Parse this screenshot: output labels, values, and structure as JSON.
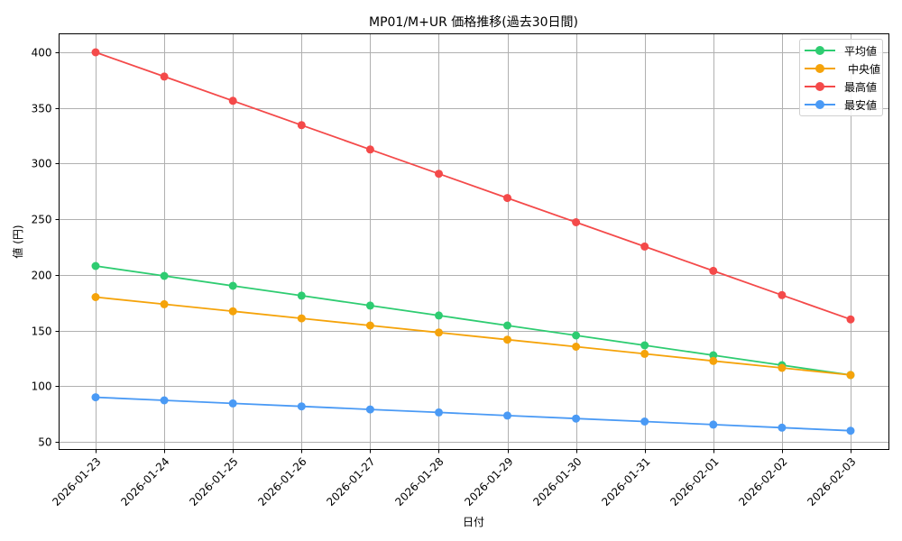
{
  "chart_data": {
    "type": "line",
    "title": "MP01/M+UR 価格推移(過去30日間)",
    "xlabel": "日付",
    "ylabel": "値 (円)",
    "categories": [
      "2026-01-23",
      "2026-01-24",
      "2026-01-25",
      "2026-01-26",
      "2026-01-27",
      "2026-01-28",
      "2026-01-29",
      "2026-01-30",
      "2026-01-31",
      "2026-02-01",
      "2026-02-02",
      "2026-02-03"
    ],
    "series": [
      {
        "name": "平均値",
        "color": "#2ecc71",
        "values": [
          208,
          199.1,
          190.2,
          181.3,
          172.4,
          163.5,
          154.5,
          145.6,
          136.7,
          127.8,
          118.9,
          110
        ]
      },
      {
        "name": "中央値",
        "color": "#f5a30a",
        "values": [
          180,
          173.6,
          167.3,
          160.9,
          154.5,
          148.2,
          141.8,
          135.5,
          129.1,
          122.7,
          116.4,
          110
        ]
      },
      {
        "name": "最高値",
        "color": "#f44a4a",
        "values": [
          400,
          378.2,
          356.4,
          334.5,
          312.7,
          290.9,
          269.1,
          247.3,
          225.5,
          203.6,
          181.8,
          160
        ]
      },
      {
        "name": "最安値",
        "color": "#4a9af5",
        "values": [
          90,
          87.3,
          84.5,
          81.8,
          79.1,
          76.4,
          73.6,
          70.9,
          68.2,
          65.5,
          62.7,
          60
        ]
      }
    ],
    "yticks": [
      50,
      100,
      150,
      200,
      250,
      300,
      350,
      400
    ],
    "ylim": [
      43,
      415
    ],
    "grid": true,
    "legend_position": "upper right"
  },
  "legend": {
    "items": [
      {
        "label": "平均値",
        "color": "#2ecc71"
      },
      {
        "label": "中央値",
        "color": "#f5a30a"
      },
      {
        "label": "最高値",
        "color": "#f44a4a"
      },
      {
        "label": "最安値",
        "color": "#4a9af5"
      }
    ]
  }
}
